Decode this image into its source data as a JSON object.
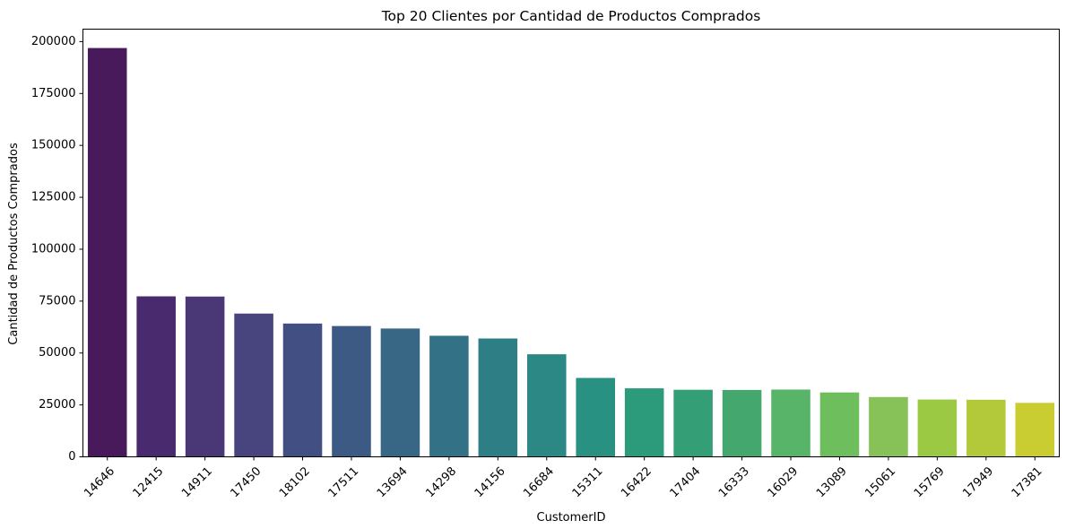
{
  "chart_data": {
    "type": "bar",
    "title": "Top 20 Clientes por Cantidad de Productos Comprados",
    "xlabel": "CustomerID",
    "ylabel": "Cantidad de Productos Comprados",
    "ylim": [
      0,
      206000
    ],
    "yticks": [
      0,
      25000,
      50000,
      75000,
      100000,
      125000,
      150000,
      175000,
      200000
    ],
    "ytick_labels": [
      "0",
      "25000",
      "50000",
      "75000",
      "100000",
      "125000",
      "150000",
      "175000",
      "200000"
    ],
    "categories": [
      "14646",
      "12415",
      "14911",
      "17450",
      "18102",
      "17511",
      "13694",
      "14298",
      "14156",
      "16684",
      "15311",
      "16422",
      "17404",
      "16333",
      "16029",
      "13089",
      "15061",
      "15769",
      "17949",
      "17381"
    ],
    "values": [
      196900,
      77300,
      77200,
      69000,
      64200,
      63000,
      61800,
      58300,
      57000,
      49400,
      38000,
      33000,
      32300,
      32200,
      32400,
      31000,
      28800,
      27600,
      27500,
      26000
    ],
    "colors": [
      "#481a5c",
      "#492a6e",
      "#4a3776",
      "#48447e",
      "#424f82",
      "#3d5a84",
      "#386786",
      "#337286",
      "#2e7e85",
      "#2b8884",
      "#289181",
      "#2c9b7c",
      "#349f76",
      "#44a76d",
      "#58b469",
      "#6ebe5e",
      "#87c258",
      "#9bc944",
      "#b4c93a",
      "#c9cd31"
    ],
    "grid": false,
    "legend": "none",
    "xtick_rotation": -45
  }
}
